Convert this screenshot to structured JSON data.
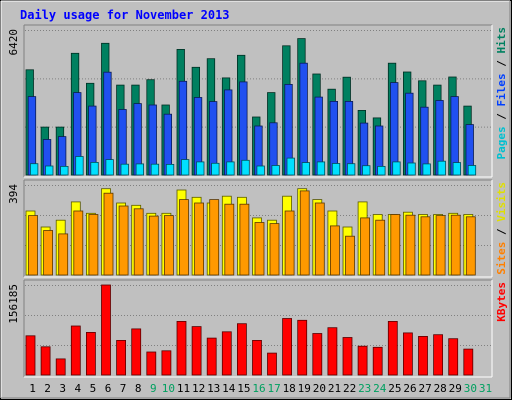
{
  "chart_data": {
    "type": "bar",
    "title": "Daily usage for November 2013",
    "days": [
      "1",
      "2",
      "3",
      "4",
      "5",
      "6",
      "7",
      "8",
      "9",
      "10",
      "11",
      "12",
      "13",
      "14",
      "15",
      "16",
      "17",
      "18",
      "19",
      "20",
      "21",
      "22",
      "23",
      "24",
      "25",
      "26",
      "27",
      "28",
      "29",
      "30",
      "31"
    ],
    "weekend_days": [
      "9",
      "10",
      "16",
      "17",
      "23",
      "24",
      "30",
      "31"
    ],
    "panels": [
      {
        "id": "hits-files-pages",
        "max_label": "6420",
        "ymax": 6420,
        "axis_label_parts": [
          {
            "text": "Pages",
            "color": "#00c0d0"
          },
          {
            "text": " / ",
            "color": "#000000"
          },
          {
            "text": "Files",
            "color": "#0040ff"
          },
          {
            "text": " / ",
            "color": "#000000"
          },
          {
            "text": "Hits",
            "color": "#008060"
          }
        ],
        "series": [
          {
            "name": "Hits",
            "color": "#008060",
            "values": [
              4660,
              2120,
              2120,
              5390,
              4060,
              5830,
              3980,
              3980,
              4220,
              3100,
              5560,
              4770,
              5150,
              4300,
              5300,
              2570,
              3650,
              5720,
              6040,
              4470,
              3800,
              4330,
              2860,
              2530,
              4950,
              4560,
              4170,
              3980,
              4340,
              3050,
              0
            ]
          },
          {
            "name": "Files",
            "color": "#2050f0",
            "values": [
              3470,
              1570,
              1700,
              3650,
              3050,
              4550,
              2900,
              3160,
              3100,
              2690,
              4150,
              3430,
              3250,
              3770,
              4120,
              2170,
              2310,
              4010,
              4950,
              3450,
              3260,
              3260,
              2300,
              2170,
              4090,
              3620,
              3000,
              3300,
              3470,
              2230,
              0
            ]
          },
          {
            "name": "Pages",
            "color": "#00e0ff",
            "values": [
              500,
              400,
              380,
              820,
              560,
              680,
              480,
              490,
              480,
              470,
              680,
              580,
              520,
              580,
              650,
              400,
              420,
              750,
              550,
              580,
              510,
              500,
              410,
              380,
              580,
              530,
              490,
              610,
              550,
              420,
              0
            ]
          }
        ]
      },
      {
        "id": "visits-sites",
        "max_label": "394",
        "ymax": 394,
        "axis_label_parts": [
          {
            "text": "Sites",
            "color": "#ff8000"
          },
          {
            "text": " / ",
            "color": "#000000"
          },
          {
            "text": "Visits",
            "color": "#e0e000"
          }
        ],
        "series": [
          {
            "name": "Visits",
            "color": "#ffff00",
            "values": [
              280,
              210,
              240,
              320,
              270,
              378,
              315,
              305,
              270,
              270,
              372,
              340,
              315,
              345,
              340,
              250,
              240,
              345,
              378,
              330,
              280,
              210,
              320,
              265,
              265,
              275,
              265,
              265,
              270,
              265,
              0
            ]
          },
          {
            "name": "Sites",
            "color": "#ff9900",
            "values": [
              260,
              195,
              180,
              280,
              265,
              358,
              302,
              290,
              258,
              260,
              330,
              315,
              330,
              310,
              310,
              230,
              225,
              280,
              368,
              315,
              215,
              170,
              250,
              240,
              265,
              262,
              255,
              260,
              262,
              255,
              0
            ]
          }
        ]
      },
      {
        "id": "kbytes",
        "max_label": "156185",
        "ymax": 156185,
        "axis_label_parts": [
          {
            "text": "KBytes",
            "color": "#ff0000"
          }
        ],
        "series": [
          {
            "name": "KBytes",
            "color": "#ff0000",
            "values": [
              68000,
              49000,
              28000,
              85000,
              74000,
              156185,
              60000,
              80000,
              40000,
              42000,
              93000,
              84000,
              64000,
              75000,
              89000,
              60000,
              38000,
              98000,
              95000,
              72000,
              82000,
              65000,
              50000,
              48000,
              93000,
              73000,
              67000,
              70000,
              63000,
              45000,
              0
            ]
          }
        ]
      }
    ]
  },
  "colors": {
    "background": "#c0c0c0",
    "title": "#0000ff",
    "weekday_label": "#000000",
    "weekend_label": "#00a060",
    "grid": "#808080"
  }
}
